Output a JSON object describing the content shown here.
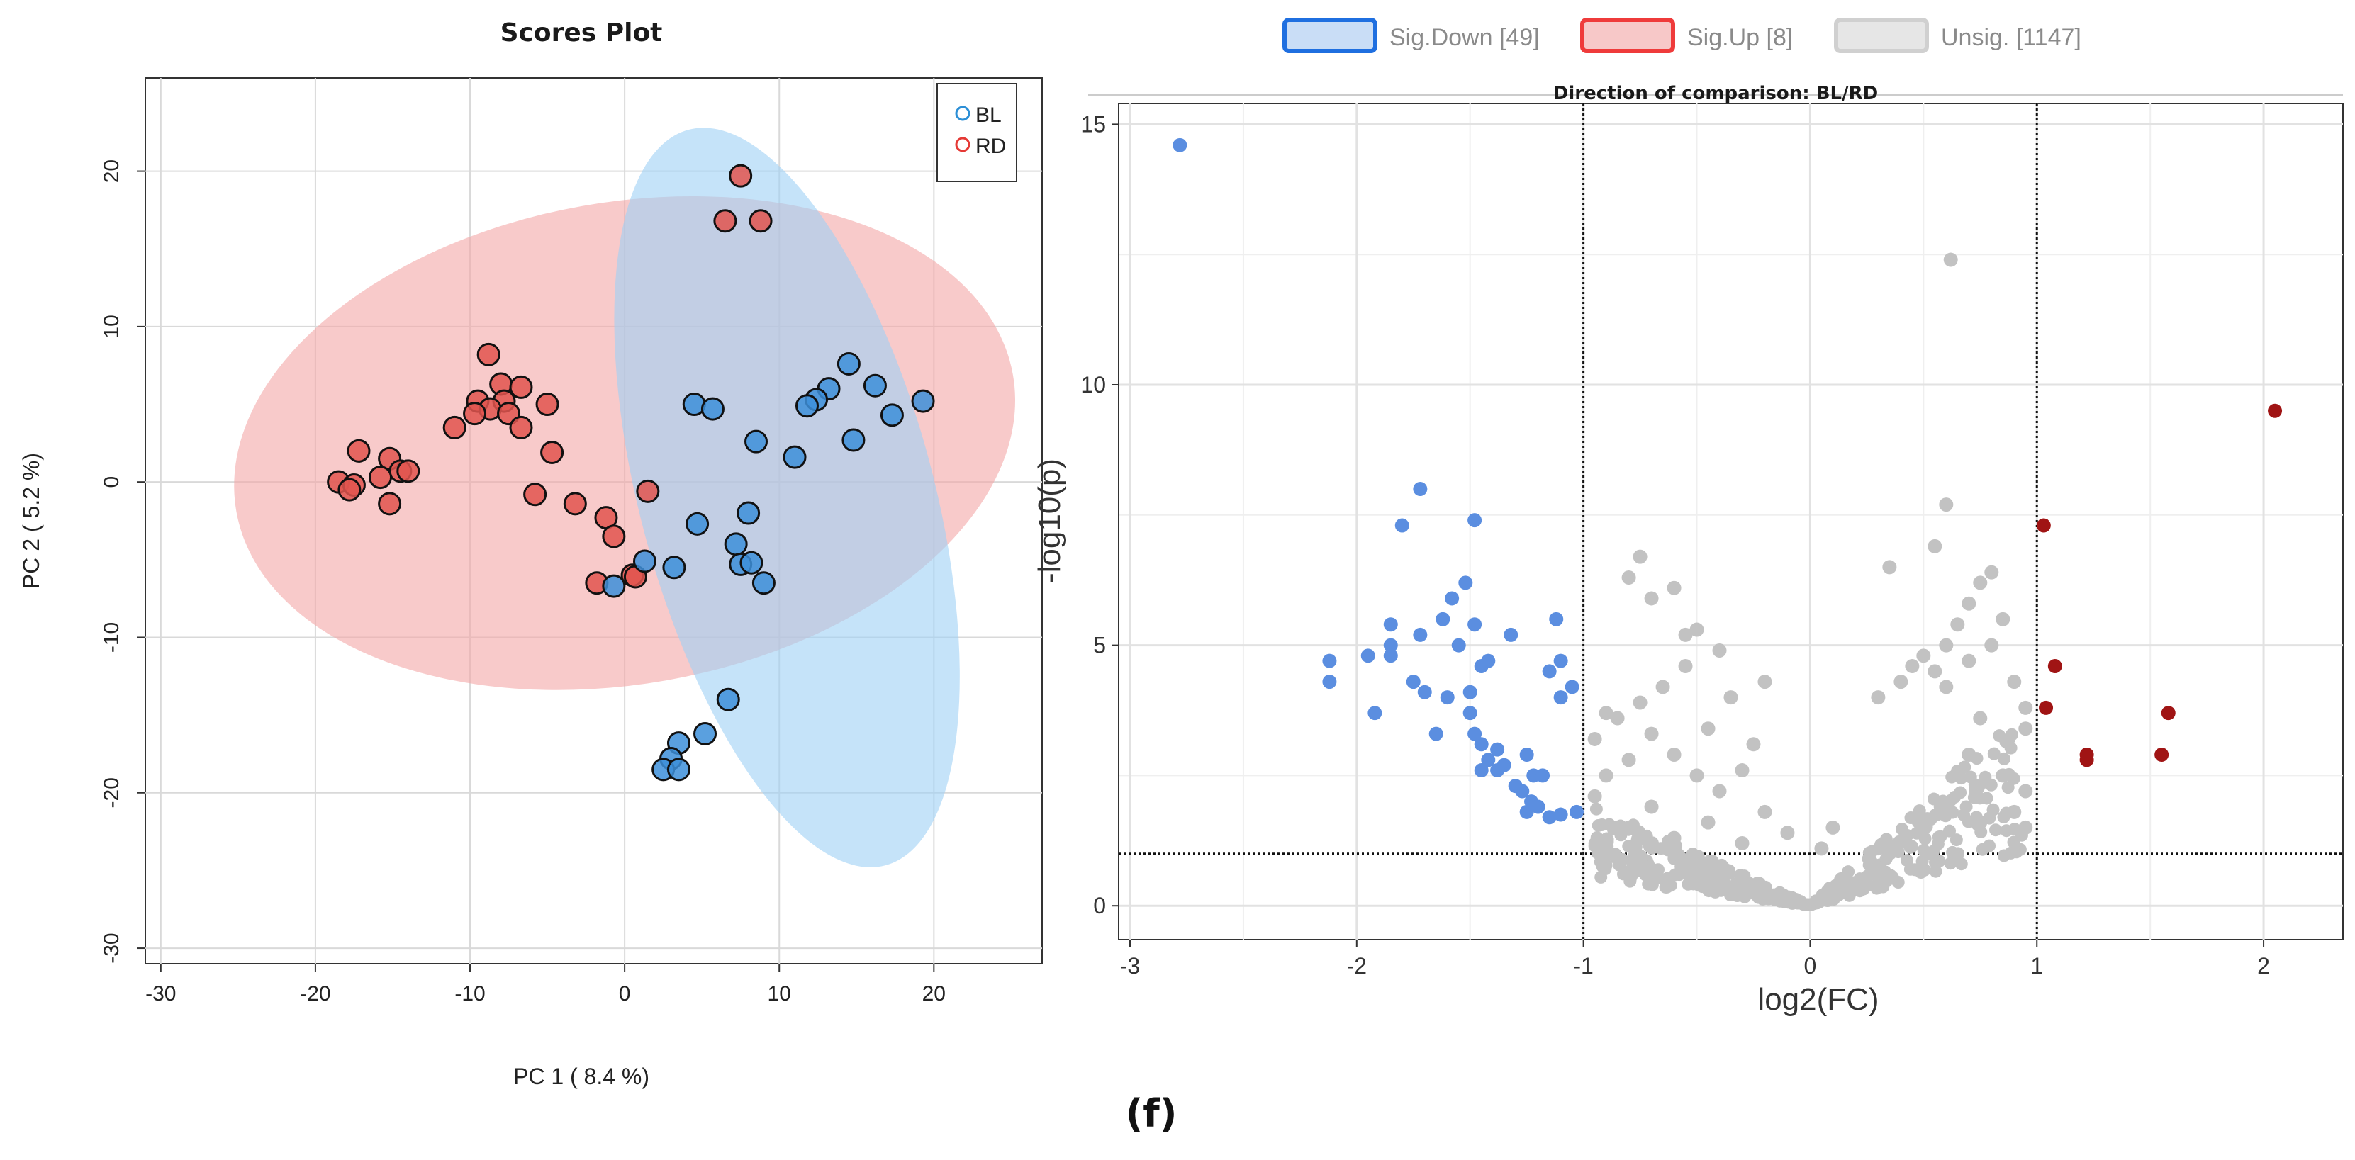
{
  "caption": "(f)",
  "colors": {
    "bl_fill": "#3d8fd9",
    "rd_fill": "#e2554f",
    "bl_ellipse": "#9fd1f5",
    "rd_ellipse": "#f4a6a6",
    "legend_bl": "#2c8fd6",
    "legend_rd": "#e53935",
    "sig_down": "#5b8ee0",
    "sig_up": "#a01414",
    "unsig": "#c2c2c2",
    "legend_down_border": "#1f6fe0",
    "legend_up_border": "#ef3b3b",
    "legend_unsig_border": "#d0d0d0",
    "grid": "#d9d9d9"
  },
  "chart_data": [
    {
      "type": "scatter",
      "title": "Scores Plot",
      "xlabel": "PC 1 ( 8.4 %)",
      "ylabel": "PC 2 ( 5.2 %)",
      "xlim": [
        -31,
        27
      ],
      "ylim": [
        -31,
        26
      ],
      "xticks": [
        -30,
        -20,
        -10,
        0,
        10,
        20
      ],
      "yticks": [
        -30,
        -20,
        -10,
        0,
        10,
        20
      ],
      "xtick_labels": [
        "-30",
        "-20",
        "-10",
        "0",
        "10",
        "20"
      ],
      "ytick_labels": [
        "-30",
        "-20",
        "-10",
        "0",
        "10",
        "20"
      ],
      "grid": true,
      "legend_position": "top-right",
      "legend": [
        {
          "name": "BL"
        },
        {
          "name": "RD"
        }
      ],
      "ellipses": [
        {
          "group": "RD",
          "cx": 0,
          "cy": 2.5,
          "rx": 25.5,
          "ry": 15.5,
          "angle": 10
        },
        {
          "group": "BL",
          "cx": 10.5,
          "cy": -1,
          "rx": 9.5,
          "ry": 24.5,
          "angle": 15
        }
      ],
      "series": [
        {
          "name": "RD",
          "points": [
            [
              7.5,
              19.7
            ],
            [
              6.5,
              16.8
            ],
            [
              8.8,
              16.8
            ],
            [
              -8.8,
              8.2
            ],
            [
              -8,
              6.3
            ],
            [
              -6.7,
              6.1
            ],
            [
              -9.5,
              5.2
            ],
            [
              -7.8,
              5.2
            ],
            [
              -5,
              5
            ],
            [
              -8.7,
              4.7
            ],
            [
              -9.7,
              4.4
            ],
            [
              -7.5,
              4.4
            ],
            [
              -11,
              3.5
            ],
            [
              -6.7,
              3.5
            ],
            [
              -17.2,
              2
            ],
            [
              -4.7,
              1.9
            ],
            [
              -15.2,
              1.5
            ],
            [
              -14.5,
              0.7
            ],
            [
              -14,
              0.7
            ],
            [
              -15.8,
              0.3
            ],
            [
              -18.5,
              0
            ],
            [
              -17.5,
              -0.2
            ],
            [
              -17.8,
              -0.5
            ],
            [
              -5.8,
              -0.8
            ],
            [
              -15.2,
              -1.4
            ],
            [
              -3.2,
              -1.4
            ],
            [
              1.5,
              -0.6
            ],
            [
              -1.2,
              -2.3
            ],
            [
              -0.7,
              -3.5
            ],
            [
              0.5,
              -6
            ],
            [
              0.7,
              -6.1
            ],
            [
              -1.8,
              -6.5
            ]
          ]
        },
        {
          "name": "BL",
          "points": [
            [
              14.5,
              7.6
            ],
            [
              16.2,
              6.2
            ],
            [
              13.2,
              6
            ],
            [
              12.4,
              5.3
            ],
            [
              19.3,
              5.2
            ],
            [
              11.8,
              4.9
            ],
            [
              4.5,
              5
            ],
            [
              5.7,
              4.7
            ],
            [
              17.3,
              4.3
            ],
            [
              14.8,
              2.7
            ],
            [
              8.5,
              2.6
            ],
            [
              11,
              1.6
            ],
            [
              8,
              -2
            ],
            [
              4.7,
              -2.7
            ],
            [
              7.2,
              -4
            ],
            [
              1.3,
              -5.1
            ],
            [
              7.5,
              -5.3
            ],
            [
              8.2,
              -5.2
            ],
            [
              3.2,
              -5.5
            ],
            [
              9,
              -6.5
            ],
            [
              -0.7,
              -6.7
            ],
            [
              6.7,
              -14
            ],
            [
              5.2,
              -16.2
            ],
            [
              3.5,
              -16.8
            ],
            [
              3,
              -17.8
            ],
            [
              2.5,
              -18.5
            ],
            [
              3.5,
              -18.5
            ]
          ]
        }
      ]
    },
    {
      "type": "scatter",
      "title": "Direction of comparison: BL/RD",
      "xlabel": "log2(FC)",
      "ylabel": "-log10(p)",
      "xlim": [
        -3.05,
        2.35
      ],
      "ylim": [
        -0.65,
        15.4
      ],
      "xticks": [
        -3,
        -2,
        -1,
        0,
        1,
        2
      ],
      "yticks": [
        0,
        5,
        10,
        15
      ],
      "xtick_labels": [
        "-3",
        "-2",
        "-1",
        "0",
        "1",
        "2"
      ],
      "ytick_labels": [
        "0",
        "5",
        "10",
        "15"
      ],
      "grid": true,
      "legend_position": "top",
      "thresholds": {
        "fc_low": -1,
        "fc_high": 1,
        "p": 1
      },
      "legend": [
        {
          "name": "Sig.Down",
          "count": "[49]"
        },
        {
          "name": "Sig.Up",
          "count": "[8]"
        },
        {
          "name": "Unsig.",
          "count": "[1147]"
        }
      ],
      "series": [
        {
          "name": "Sig.Down",
          "points": [
            [
              -2.78,
              14.6
            ],
            [
              -1.72,
              8.0
            ],
            [
              -1.8,
              7.3
            ],
            [
              -1.48,
              7.4
            ],
            [
              -1.52,
              6.2
            ],
            [
              -1.58,
              5.9
            ],
            [
              -1.62,
              5.5
            ],
            [
              -1.85,
              5.4
            ],
            [
              -1.72,
              5.2
            ],
            [
              -1.48,
              5.4
            ],
            [
              -1.32,
              5.2
            ],
            [
              -1.12,
              5.5
            ],
            [
              -1.55,
              5.0
            ],
            [
              -1.85,
              5.0
            ],
            [
              -1.85,
              4.8
            ],
            [
              -1.95,
              4.8
            ],
            [
              -1.42,
              4.7
            ],
            [
              -1.45,
              4.6
            ],
            [
              -1.15,
              4.5
            ],
            [
              -1.1,
              4.7
            ],
            [
              -2.12,
              4.7
            ],
            [
              -2.12,
              4.3
            ],
            [
              -1.75,
              4.3
            ],
            [
              -1.7,
              4.1
            ],
            [
              -1.6,
              4.0
            ],
            [
              -1.5,
              4.1
            ],
            [
              -1.1,
              4.0
            ],
            [
              -1.05,
              4.2
            ],
            [
              -1.5,
              3.7
            ],
            [
              -1.92,
              3.7
            ],
            [
              -1.65,
              3.3
            ],
            [
              -1.48,
              3.3
            ],
            [
              -1.45,
              3.1
            ],
            [
              -1.38,
              3.0
            ],
            [
              -1.42,
              2.8
            ],
            [
              -1.38,
              2.6
            ],
            [
              -1.45,
              2.6
            ],
            [
              -1.35,
              2.7
            ],
            [
              -1.25,
              2.9
            ],
            [
              -1.22,
              2.5
            ],
            [
              -1.18,
              2.5
            ],
            [
              -1.3,
              2.3
            ],
            [
              -1.27,
              2.2
            ],
            [
              -1.23,
              2.0
            ],
            [
              -1.25,
              1.8
            ],
            [
              -1.2,
              1.9
            ],
            [
              -1.15,
              1.7
            ],
            [
              -1.1,
              1.75
            ],
            [
              -1.03,
              1.8
            ]
          ]
        },
        {
          "name": "Sig.Up",
          "points": [
            [
              2.05,
              9.5
            ],
            [
              1.03,
              7.3
            ],
            [
              1.08,
              4.6
            ],
            [
              1.04,
              3.8
            ],
            [
              1.58,
              3.7
            ],
            [
              1.22,
              2.9
            ],
            [
              1.22,
              2.8
            ],
            [
              1.55,
              2.9
            ]
          ]
        },
        {
          "name": "Unsig.",
          "points": [
            [
              0.62,
              12.4
            ],
            [
              0.6,
              7.7
            ],
            [
              0.55,
              6.9
            ],
            [
              0.35,
              6.5
            ],
            [
              0.8,
              6.4
            ],
            [
              0.75,
              6.2
            ],
            [
              0.7,
              5.8
            ],
            [
              0.85,
              5.5
            ],
            [
              0.8,
              5.0
            ],
            [
              0.65,
              5.4
            ],
            [
              0.6,
              5.0
            ],
            [
              0.5,
              4.8
            ],
            [
              0.45,
              4.6
            ],
            [
              0.55,
              4.5
            ],
            [
              0.7,
              4.7
            ],
            [
              0.9,
              4.3
            ],
            [
              0.4,
              4.3
            ],
            [
              0.6,
              4.2
            ],
            [
              0.3,
              4.0
            ],
            [
              0.95,
              3.8
            ],
            [
              0.75,
              3.6
            ],
            [
              0.95,
              3.4
            ],
            [
              0.7,
              2.9
            ],
            [
              0.85,
              2.5
            ],
            [
              0.95,
              2.2
            ],
            [
              0.9,
              1.8
            ],
            [
              0.75,
              1.6
            ],
            [
              0.95,
              1.5
            ],
            [
              -0.75,
              6.7
            ],
            [
              -0.8,
              6.3
            ],
            [
              -0.6,
              6.1
            ],
            [
              -0.55,
              5.2
            ],
            [
              -0.7,
              5.9
            ],
            [
              -0.5,
              5.3
            ],
            [
              -0.4,
              4.9
            ],
            [
              -0.55,
              4.6
            ],
            [
              -0.65,
              4.2
            ],
            [
              -0.75,
              3.9
            ],
            [
              -0.2,
              4.3
            ],
            [
              -0.35,
              4.0
            ],
            [
              -0.85,
              3.6
            ],
            [
              -0.45,
              3.4
            ],
            [
              -0.7,
              3.3
            ],
            [
              -0.9,
              3.7
            ],
            [
              -0.95,
              3.2
            ],
            [
              -0.25,
              3.1
            ],
            [
              -0.8,
              2.8
            ],
            [
              -0.6,
              2.9
            ],
            [
              -0.5,
              2.5
            ],
            [
              -0.3,
              2.6
            ],
            [
              -0.9,
              2.5
            ],
            [
              -0.4,
              2.2
            ],
            [
              -0.95,
              2.1
            ],
            [
              -0.7,
              1.9
            ],
            [
              -0.2,
              1.8
            ],
            [
              -0.45,
              1.6
            ],
            [
              -0.85,
              1.5
            ],
            [
              -0.1,
              1.4
            ],
            [
              0.1,
              1.5
            ],
            [
              -0.6,
              1.3
            ],
            [
              -0.3,
              1.2
            ],
            [
              0.05,
              1.1
            ]
          ]
        }
      ]
    }
  ]
}
